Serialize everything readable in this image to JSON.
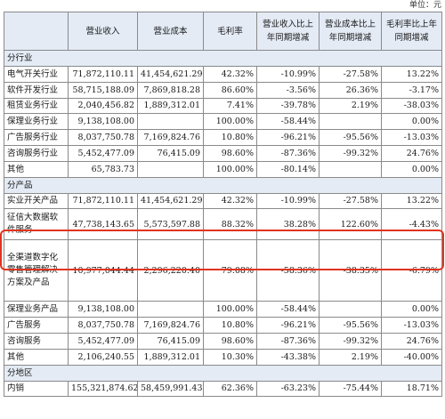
{
  "unit_label": "单位：元",
  "headers": [
    "",
    "营业收入",
    "营业成本",
    "毛利率",
    "营业收入比上年同期增减",
    "营业成本比上年同期增减",
    "毛利率比上年同期增减"
  ],
  "sections": [
    {
      "title": "分行业",
      "rows": [
        {
          "name": "电气开关行业",
          "rev": "71,872,110.11",
          "cost": "41,454,621.29",
          "gm": "42.32%",
          "rev_chg": "-10.99%",
          "cost_chg": "-27.58%",
          "gm_chg": "13.22%"
        },
        {
          "name": "软件开发行业",
          "rev": "58,715,188.09",
          "cost": "7,869,818.28",
          "gm": "86.60%",
          "rev_chg": "-3.56%",
          "cost_chg": "26.36%",
          "gm_chg": "-3.17%"
        },
        {
          "name": "租赁业务行业",
          "rev": "2,040,456.82",
          "cost": "1,889,312.01",
          "gm": "7.41%",
          "rev_chg": "-39.78%",
          "cost_chg": "2.19%",
          "gm_chg": "-38.03%"
        },
        {
          "name": "保理业务行业",
          "rev": "9,138,108.00",
          "cost": "",
          "gm": "100.00%",
          "rev_chg": "-58.44%",
          "cost_chg": "",
          "gm_chg": "0.00%"
        },
        {
          "name": "广告服务行业",
          "rev": "8,037,750.78",
          "cost": "7,169,824.76",
          "gm": "10.80%",
          "rev_chg": "-96.21%",
          "cost_chg": "-95.56%",
          "gm_chg": "-13.03%"
        },
        {
          "name": "咨询服务行业",
          "rev": "5,452,477.09",
          "cost": "76,415.09",
          "gm": "98.60%",
          "rev_chg": "-87.36%",
          "cost_chg": "-99.32%",
          "gm_chg": "24.76%"
        },
        {
          "name": "其他",
          "rev": "65,783.73",
          "cost": "",
          "gm": "100.00%",
          "rev_chg": "-80.14%",
          "cost_chg": "",
          "gm_chg": "0.00%"
        }
      ]
    },
    {
      "title": "分产品",
      "rows": [
        {
          "name": "实业开关产品",
          "rev": "71,872,110.11",
          "cost": "41,454,621.29",
          "gm": "42.32%",
          "rev_chg": "-10.99%",
          "cost_chg": "-27.58%",
          "gm_chg": "13.22%"
        },
        {
          "name": "征信大数据软件服务",
          "rev": "47,738,143.65",
          "cost": "5,573,597.88",
          "gm": "88.32%",
          "rev_chg": "38.28%",
          "cost_chg": "122.60%",
          "gm_chg": "-4.43%"
        },
        {
          "name": "全渠道数字化零售管理解决方案及产品",
          "rev": "10,977,044.44",
          "cost": "2,296,220.40",
          "gm": "79.08%",
          "rev_chg": "-58.36%",
          "cost_chg": "-38.35%",
          "gm_chg": "-6.79%"
        },
        {
          "name": "保理业务产品",
          "rev": "9,138,108.00",
          "cost": "",
          "gm": "100.00%",
          "rev_chg": "-58.44%",
          "cost_chg": "",
          "gm_chg": "0.00%"
        },
        {
          "name": "广告服务",
          "rev": "8,037,750.78",
          "cost": "7,169,824.76",
          "gm": "10.80%",
          "rev_chg": "-96.21%",
          "cost_chg": "-95.56%",
          "gm_chg": "-13.03%"
        },
        {
          "name": "咨询服务",
          "rev": "5,452,477.09",
          "cost": "76,415.09",
          "gm": "98.60%",
          "rev_chg": "-87.36%",
          "cost_chg": "-99.32%",
          "gm_chg": "24.76%"
        },
        {
          "name": "其他",
          "rev": "2,106,240.55",
          "cost": "1,889,312.01",
          "gm": "10.30%",
          "rev_chg": "-43.38%",
          "cost_chg": "2.19%",
          "gm_chg": "-40.00%"
        }
      ]
    },
    {
      "title": "分地区",
      "rows": [
        {
          "name": "内销",
          "rev": "155,321,874.62",
          "cost": "58,459,991.43",
          "gm": "62.36%",
          "rev_chg": "-63.23%",
          "cost_chg": "-75.44%",
          "gm_chg": "18.71%"
        }
      ]
    }
  ]
}
